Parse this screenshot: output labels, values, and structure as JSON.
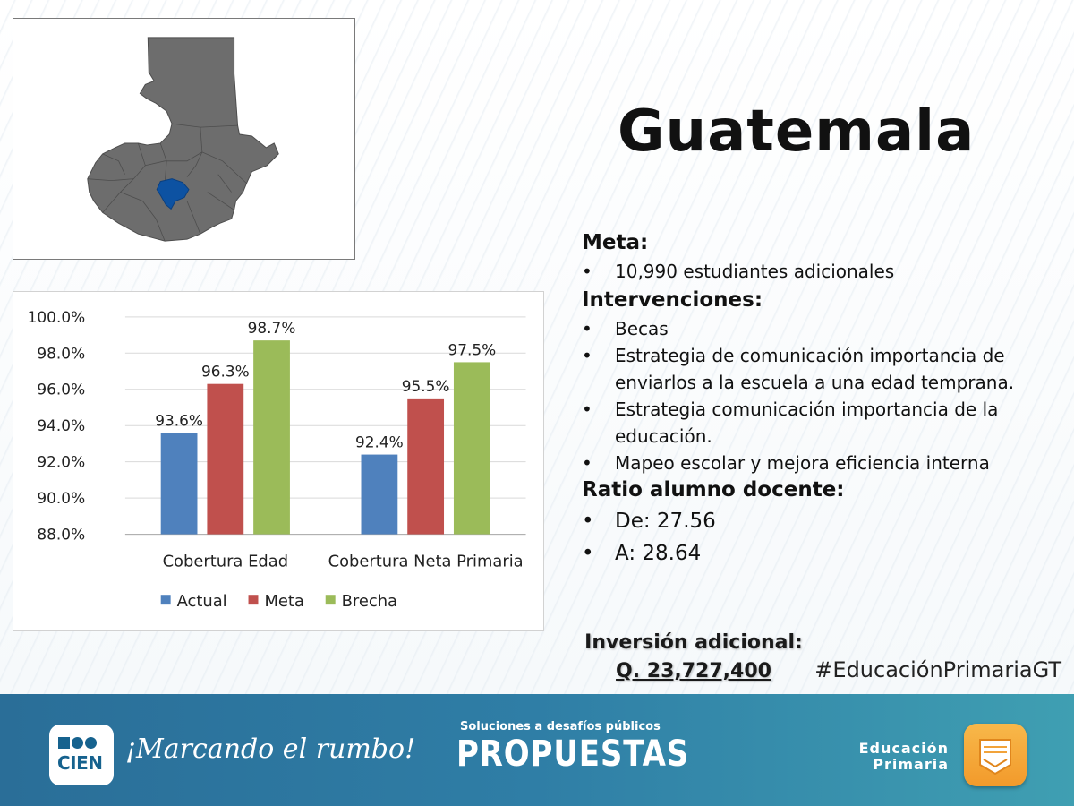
{
  "country": "Guatemala",
  "sections": {
    "meta_heading": "Meta:",
    "meta_items": [
      "10,990 estudiantes adicionales"
    ],
    "interv_heading": "Intervenciones:",
    "interv_items": [
      "Becas",
      "Estrategia de comunicación importancia de enviarlos a la escuela a una edad temprana.",
      "Estrategia comunicación importancia de la educación.",
      "Mapeo escolar y mejora eficiencia interna"
    ],
    "ratio_heading": "Ratio alumno docente:",
    "ratio_items": [
      "De: 27.56",
      "A: 28.64"
    ]
  },
  "investment": {
    "label": "Inversión adicional:",
    "amount": "Q. 23,727,400"
  },
  "hashtag": "#EducaciónPrimariaGT",
  "footer": {
    "logo_text": "CIEN",
    "slogan": "¡Marcando el rumbo!",
    "propuestas_top": "Soluciones a desafíos públicos",
    "propuestas_main": "PROPUESTAS",
    "edu_line1": "Educación",
    "edu_line2": "Primaria"
  },
  "map": {
    "land_color": "#6d6d6d",
    "highlight_color": "#0d52a2",
    "highlight_icon": "highlighted-department"
  },
  "chart_data": {
    "type": "bar",
    "categories": [
      "Cobertura Edad",
      "Cobertura Neta Primaria"
    ],
    "series": [
      {
        "name": "Actual",
        "color": "#4f81bd",
        "values": [
          93.6,
          92.4
        ]
      },
      {
        "name": "Meta",
        "color": "#c0504d",
        "values": [
          96.3,
          95.5
        ]
      },
      {
        "name": "Brecha",
        "color": "#9bbb59",
        "values": [
          98.7,
          97.5
        ]
      }
    ],
    "data_labels": [
      [
        "93.6%",
        "92.4%"
      ],
      [
        "96.3%",
        "95.5%"
      ],
      [
        "98.7%",
        "97.5%"
      ]
    ],
    "yticks": [
      "88.0%",
      "90.0%",
      "92.0%",
      "94.0%",
      "96.0%",
      "98.0%",
      "100.0%"
    ],
    "ylim": [
      88,
      100
    ],
    "ystep": 2,
    "grid": true,
    "legend_position": "bottom"
  }
}
